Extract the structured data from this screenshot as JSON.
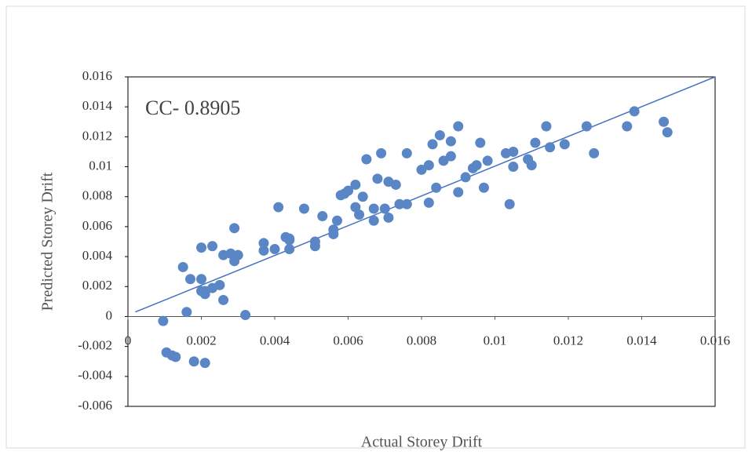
{
  "chart_data": {
    "type": "scatter",
    "annotation": "CC- 0.8905",
    "x_label": "Actual Storey Drift",
    "y_label": "Predicted Storey Drift",
    "color": "#5b86c5",
    "x": [
      0.00096,
      0.00105,
      0.0012,
      0.0013,
      0.0015,
      0.0016,
      0.0017,
      0.0018,
      0.002,
      0.002,
      0.002,
      0.0021,
      0.0021,
      0.0021,
      0.0023,
      0.0023,
      0.0025,
      0.0026,
      0.0026,
      0.0028,
      0.0029,
      0.0029,
      0.003,
      0.0032,
      0.0037,
      0.0037,
      0.004,
      0.0041,
      0.0043,
      0.0044,
      0.0044,
      0.0044,
      0.0048,
      0.0051,
      0.0051,
      0.0053,
      0.0056,
      0.0056,
      0.0057,
      0.0058,
      0.0059,
      0.006,
      0.0062,
      0.0062,
      0.0063,
      0.0064,
      0.0065,
      0.0067,
      0.0067,
      0.0068,
      0.0069,
      0.007,
      0.0071,
      0.0071,
      0.0073,
      0.0074,
      0.0076,
      0.0076,
      0.008,
      0.0082,
      0.0082,
      0.0083,
      0.0084,
      0.0085,
      0.0086,
      0.0088,
      0.0088,
      0.009,
      0.009,
      0.0092,
      0.0094,
      0.0095,
      0.0096,
      0.0097,
      0.0098,
      0.0103,
      0.0104,
      0.0105,
      0.0105,
      0.0109,
      0.011,
      0.0111,
      0.0114,
      0.0115,
      0.0119,
      0.0125,
      0.0127,
      0.0136,
      0.0138,
      0.0146,
      0.0147
    ],
    "values": [
      -0.0003,
      -0.0024,
      -0.0026,
      -0.0027,
      0.0033,
      0.0003,
      0.0025,
      -0.003,
      0.0046,
      0.0025,
      0.0017,
      0.0015,
      0.0017,
      -0.0031,
      0.0047,
      0.0019,
      0.0021,
      0.0011,
      0.0041,
      0.0042,
      0.0037,
      0.0059,
      0.0041,
      0.0001,
      0.0049,
      0.0044,
      0.0045,
      0.0073,
      0.0053,
      0.0052,
      0.0045,
      0.0051,
      0.0072,
      0.005,
      0.0047,
      0.0067,
      0.0058,
      0.0055,
      0.0064,
      0.0081,
      0.0082,
      0.0084,
      0.0073,
      0.0088,
      0.0068,
      0.008,
      0.0105,
      0.0064,
      0.0072,
      0.0092,
      0.0109,
      0.0072,
      0.009,
      0.0066,
      0.0088,
      0.0075,
      0.0075,
      0.0109,
      0.0098,
      0.0101,
      0.0076,
      0.0115,
      0.0086,
      0.0121,
      0.0104,
      0.0117,
      0.0107,
      0.0127,
      0.0083,
      0.0093,
      0.0099,
      0.0101,
      0.0116,
      0.0086,
      0.0104,
      0.0109,
      0.0075,
      0.011,
      0.01,
      0.0105,
      0.0101,
      0.0116,
      0.0127,
      0.0113,
      0.0115,
      0.0127,
      0.0109,
      0.0127,
      0.0137,
      0.013,
      0.0123
    ],
    "trendline": {
      "color": "#4472c4",
      "x": [
        0.0002,
        0.016
      ],
      "y": [
        0.0003,
        0.016
      ]
    },
    "xlim": [
      0,
      0.016
    ],
    "xticks": [
      0,
      0.002,
      0.004,
      0.006,
      0.008,
      0.01,
      0.012,
      0.014,
      0.016
    ],
    "ylim": [
      -0.006,
      0.016
    ],
    "yticks": [
      -0.006,
      -0.004,
      -0.002,
      0,
      0.002,
      0.004,
      0.006,
      0.008,
      0.01,
      0.012,
      0.014,
      0.016
    ],
    "grid": false
  }
}
